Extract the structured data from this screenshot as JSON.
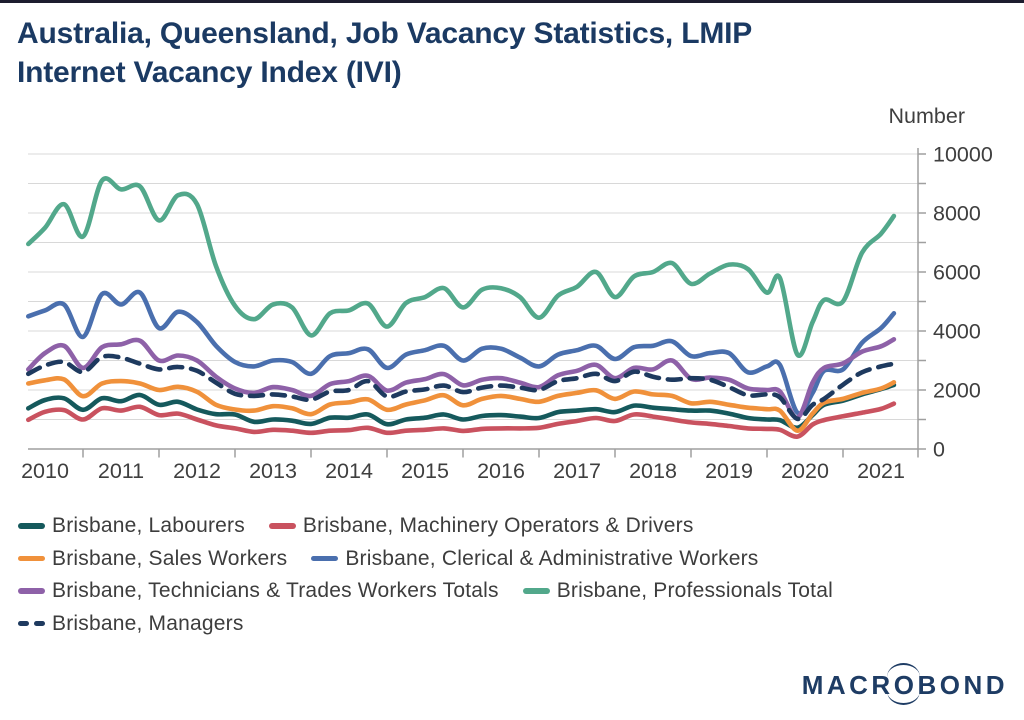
{
  "header": {
    "title_line1": "Australia, Queensland, Job Vacancy Statistics, LMIP",
    "title_line2": "Internet Vacancy Index (IVI)"
  },
  "branding": {
    "logo_prefix": "MACR",
    "logo_o": "O",
    "logo_suffix": "BOND"
  },
  "chart_data": {
    "type": "line",
    "title": "Australia, Queensland, Job Vacancy Statistics, LMIP Internet Vacancy Index (IVI)",
    "ylabel": "Number",
    "ylim": [
      0,
      10000
    ],
    "grid": true,
    "gridline_step": 1000,
    "legend_position": "bottom",
    "y_axis": {
      "side": "right",
      "tick_step": 1000,
      "labels": [
        "0",
        "2000",
        "4000",
        "6000",
        "8000",
        "10000"
      ],
      "label_values": [
        0,
        2000,
        4000,
        6000,
        8000,
        10000
      ]
    },
    "x_axis": {
      "tick_years": [
        2011,
        2012,
        2013,
        2014,
        2015,
        2016,
        2017,
        2018,
        2019,
        2020,
        2021
      ],
      "label_years": [
        "2010",
        "2011",
        "2012",
        "2013",
        "2014",
        "2015",
        "2016",
        "2017",
        "2018",
        "2019",
        "2020",
        "2021"
      ]
    },
    "x": [
      2010.28,
      2010.5,
      2010.75,
      2011,
      2011.25,
      2011.5,
      2011.75,
      2012,
      2012.25,
      2012.5,
      2012.75,
      2013,
      2013.25,
      2013.5,
      2013.75,
      2014,
      2014.25,
      2014.5,
      2014.75,
      2015,
      2015.25,
      2015.5,
      2015.75,
      2016,
      2016.25,
      2016.5,
      2016.75,
      2017,
      2017.25,
      2017.5,
      2017.75,
      2018,
      2018.25,
      2018.5,
      2018.75,
      2019,
      2019.25,
      2019.5,
      2019.75,
      2020,
      2020.17,
      2020.4,
      2020.6,
      2020.75,
      2021,
      2021.25,
      2021.5,
      2021.67
    ],
    "series": [
      {
        "name": "Brisbane, Labourers",
        "color": "#15595c",
        "dashed": false,
        "values": [
          1380,
          1660,
          1720,
          1330,
          1720,
          1620,
          1830,
          1500,
          1600,
          1340,
          1180,
          1170,
          920,
          1000,
          960,
          850,
          1060,
          1060,
          1170,
          840,
          1000,
          1060,
          1170,
          1000,
          1120,
          1150,
          1100,
          1050,
          1250,
          1300,
          1350,
          1250,
          1470,
          1400,
          1350,
          1300,
          1300,
          1200,
          1050,
          1000,
          980,
          720,
          1150,
          1500,
          1640,
          1850,
          2030,
          2170
        ]
      },
      {
        "name": "Brisbane, Machinery Operators & Drivers",
        "color": "#c9525f",
        "dashed": false,
        "values": [
          990,
          1260,
          1320,
          1000,
          1380,
          1300,
          1430,
          1150,
          1200,
          1000,
          800,
          700,
          580,
          650,
          620,
          550,
          620,
          640,
          720,
          550,
          620,
          650,
          700,
          615,
          680,
          700,
          700,
          720,
          850,
          950,
          1050,
          950,
          1170,
          1100,
          1000,
          900,
          850,
          780,
          700,
          680,
          650,
          420,
          830,
          980,
          1110,
          1230,
          1360,
          1540
        ]
      },
      {
        "name": "Brisbane, Sales Workers",
        "color": "#f0913b",
        "dashed": false,
        "values": [
          2220,
          2330,
          2360,
          1790,
          2220,
          2300,
          2220,
          2000,
          2110,
          1940,
          1500,
          1340,
          1300,
          1450,
          1380,
          1180,
          1510,
          1580,
          1680,
          1330,
          1510,
          1650,
          1820,
          1480,
          1700,
          1800,
          1700,
          1600,
          1800,
          1900,
          1990,
          1700,
          1950,
          1850,
          1800,
          1550,
          1600,
          1500,
          1400,
          1350,
          1300,
          620,
          1200,
          1570,
          1700,
          1900,
          2050,
          2260
        ]
      },
      {
        "name": "Brisbane, Clerical & Administrative Workers",
        "color": "#4a6fae",
        "dashed": false,
        "values": [
          4500,
          4700,
          4900,
          3800,
          5250,
          4900,
          5300,
          4100,
          4650,
          4300,
          3500,
          2950,
          2800,
          3000,
          2950,
          2550,
          3150,
          3250,
          3380,
          2750,
          3200,
          3350,
          3500,
          3000,
          3400,
          3400,
          3100,
          2800,
          3200,
          3350,
          3500,
          3050,
          3450,
          3500,
          3650,
          3150,
          3250,
          3250,
          2600,
          2800,
          2850,
          1230,
          1900,
          2650,
          2700,
          3600,
          4100,
          4600
        ]
      },
      {
        "name": "Brisbane, Technicians & Trades Workers Totals",
        "color": "#8e61a8",
        "dashed": false,
        "values": [
          2700,
          3250,
          3500,
          2750,
          3450,
          3550,
          3670,
          3000,
          3170,
          3000,
          2450,
          2050,
          1900,
          2100,
          2000,
          1800,
          2200,
          2300,
          2480,
          1980,
          2250,
          2370,
          2540,
          2160,
          2350,
          2400,
          2250,
          2100,
          2500,
          2650,
          2850,
          2400,
          2750,
          2700,
          3000,
          2380,
          2420,
          2350,
          2050,
          2000,
          1950,
          1060,
          2250,
          2750,
          2900,
          3300,
          3480,
          3720
        ]
      },
      {
        "name": "Brisbane, Professionals Total",
        "color": "#52a88b",
        "dashed": false,
        "values": [
          6950,
          7500,
          8300,
          7200,
          9100,
          8800,
          8900,
          7750,
          8600,
          8300,
          6200,
          4850,
          4400,
          4900,
          4800,
          3850,
          4600,
          4700,
          4930,
          4150,
          4950,
          5150,
          5450,
          4800,
          5400,
          5450,
          5150,
          4450,
          5200,
          5500,
          6000,
          5150,
          5850,
          6000,
          6300,
          5600,
          5950,
          6250,
          6100,
          5300,
          5800,
          3200,
          4300,
          5050,
          5000,
          6650,
          7300,
          7900
        ]
      },
      {
        "name": "Brisbane, Managers",
        "color": "#1e3a5f",
        "dashed": true,
        "values": [
          2550,
          2830,
          2950,
          2610,
          3120,
          3100,
          2890,
          2700,
          2780,
          2650,
          2250,
          1870,
          1800,
          1850,
          1780,
          1670,
          1950,
          2000,
          2300,
          1780,
          1950,
          2020,
          2150,
          1930,
          2080,
          2150,
          2080,
          2000,
          2300,
          2400,
          2550,
          2300,
          2620,
          2450,
          2350,
          2400,
          2350,
          2100,
          1820,
          1850,
          1750,
          1020,
          1500,
          1700,
          2180,
          2600,
          2800,
          2890
        ]
      }
    ],
    "legend_rows": [
      [
        0,
        1
      ],
      [
        2,
        3
      ],
      [
        4,
        5
      ],
      [
        6
      ]
    ]
  },
  "style_colors": {
    "title_navy": "#1b3a63",
    "axis_line": "#9f9f9f",
    "gridline": "#d8d8d8",
    "tick_text": "#3f3f3f",
    "legend_text": "#3d3d3d"
  }
}
